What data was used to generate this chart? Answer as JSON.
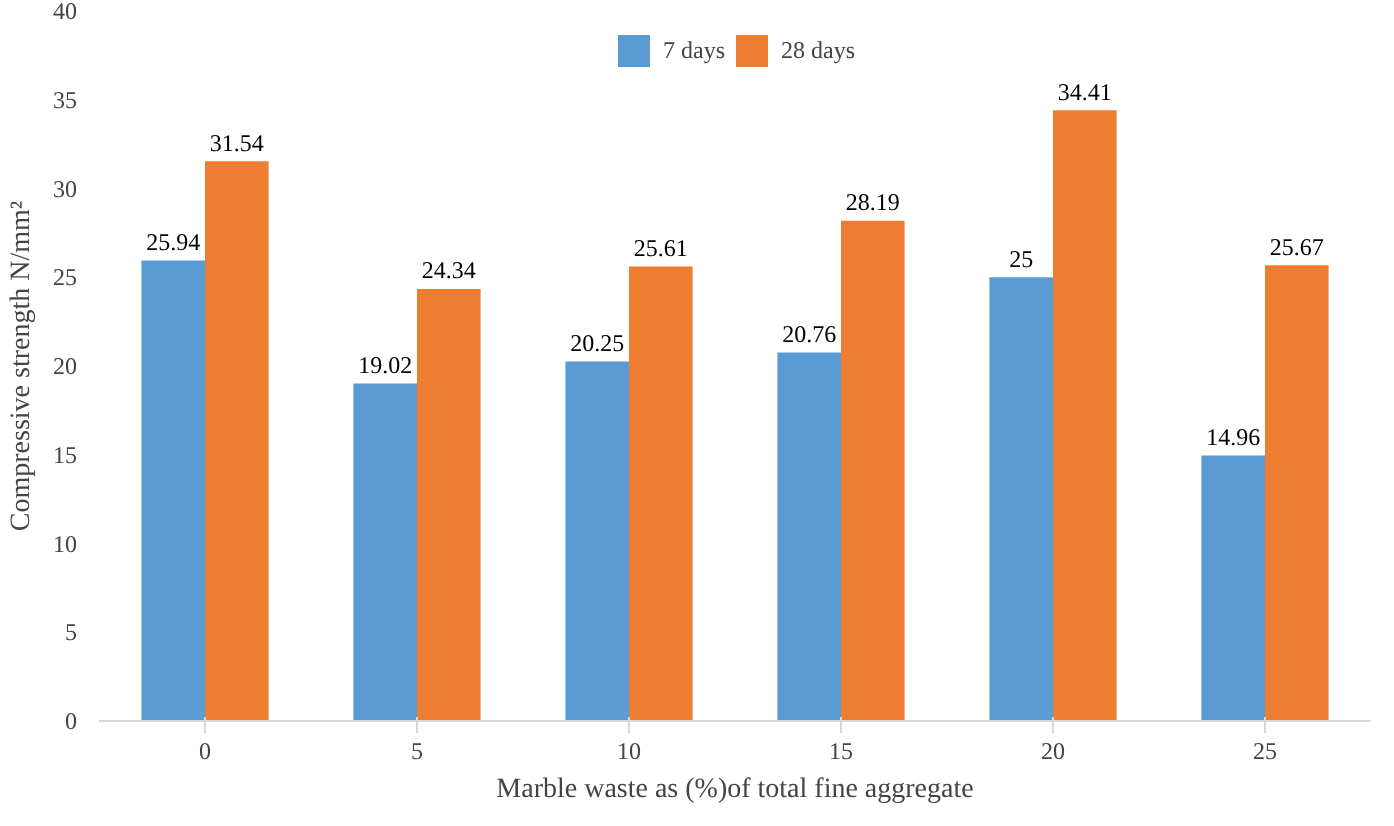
{
  "chart_data": {
    "type": "bar",
    "xlabel": "Marble waste as (%)of total fine aggregate",
    "ylabel": "Compressive strength N/mm²",
    "categories": [
      "0",
      "5",
      "10",
      "15",
      "20",
      "25"
    ],
    "series": [
      {
        "name": "7 days",
        "color": "#5b9bd5",
        "values": [
          25.94,
          19.02,
          20.25,
          20.76,
          25,
          14.96
        ]
      },
      {
        "name": "28 days",
        "color": "#ed7d31",
        "values": [
          31.54,
          24.34,
          25.61,
          28.19,
          34.41,
          25.67
        ]
      }
    ],
    "ylim": [
      0,
      40
    ],
    "yticks": [
      0,
      5,
      10,
      15,
      20,
      25,
      30,
      35,
      40
    ],
    "data_labels": true,
    "legend": "top",
    "grid": false
  }
}
